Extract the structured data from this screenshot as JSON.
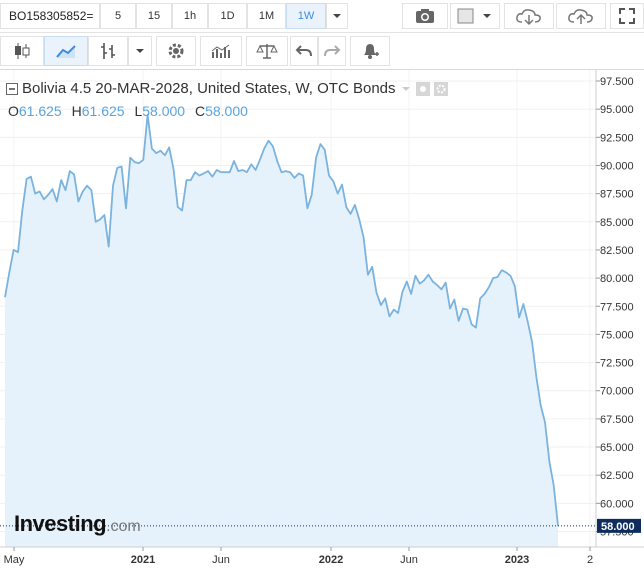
{
  "toolbar": {
    "symbol": "BO158305852=",
    "timeframes": [
      "5",
      "15",
      "1h",
      "1D",
      "1M",
      "1W"
    ],
    "active_timeframe": "1W"
  },
  "legend": {
    "title": "Bolivia 4.5 20-MAR-2028, United States, W, OTC Bonds",
    "o_label": "O",
    "o_value": "61.625",
    "h_label": "H",
    "h_value": "61.625",
    "l_label": "L",
    "l_value": "58.000",
    "c_label": "C",
    "c_value": "58.000"
  },
  "brand": {
    "name": "Investing",
    "suffix": ".com"
  },
  "colors": {
    "line": "#7ab3e0",
    "fill": "#e5f2fb",
    "accent": "#3c8dde"
  },
  "icons": [
    "candles-icon",
    "line-chart-icon",
    "bars-icon",
    "dropdown-icon",
    "gear-icon",
    "indicators-icon",
    "scales-icon",
    "undo-icon",
    "redo-icon",
    "alert-bell-icon",
    "camera-icon",
    "color-box-icon",
    "cloud-download-icon",
    "cloud-upload-icon",
    "fullscreen-icon"
  ],
  "chart_data": {
    "type": "area",
    "x_tick_labels": [
      "May",
      "2021",
      "Jun",
      "2022",
      "Jun",
      "2023",
      "2"
    ],
    "y_ticks": [
      "97.500",
      "95.000",
      "92.500",
      "90.000",
      "87.500",
      "85.000",
      "82.500",
      "80.000",
      "77.500",
      "75.000",
      "72.500",
      "70.000",
      "67.500",
      "65.000",
      "62.500",
      "60.000",
      "57.500"
    ],
    "ylim": [
      56.2,
      98.7
    ],
    "last_price": "58.000",
    "values": [
      78.3,
      80.5,
      82.5,
      82.3,
      86,
      88.8,
      89,
      87.5,
      87.7,
      87,
      87.4,
      87.9,
      86.8,
      88.7,
      87.8,
      89.5,
      89.2,
      86.8,
      87.7,
      88.2,
      87.8,
      85,
      85.2,
      85.6,
      82.8,
      88.2,
      89.8,
      89.9,
      86.2,
      90.7,
      90.3,
      90.2,
      90.5,
      94.5,
      91.5,
      91.1,
      91.3,
      90.9,
      91.6,
      89.7,
      86.3,
      86,
      88.7,
      88.7,
      89.4,
      89.1,
      89.3,
      89.5,
      89,
      89.6,
      89.4,
      89.4,
      89.4,
      90.4,
      89.5,
      89.6,
      89.4,
      90.1,
      89.6,
      90.5,
      91.5,
      92.2,
      91.7,
      90.4,
      89.4,
      89.5,
      89.4,
      88.9,
      89.3,
      89.1,
      86.2,
      87.4,
      90.7,
      91.9,
      91.4,
      89.1,
      88.6,
      87.5,
      88.3,
      86.3,
      85.7,
      86.5,
      85.2,
      83.6,
      80.3,
      81,
      78.7,
      77.6,
      78.2,
      76.6,
      77.2,
      76.9,
      78.8,
      79.7,
      78.6,
      80.2,
      79.5,
      79.8,
      80.3,
      79.7,
      79.4,
      79,
      79.6,
      77.3,
      78.1,
      76.2,
      77.3,
      77.2,
      75.9,
      75.6,
      78.2,
      78.6,
      79.2,
      80,
      80.1,
      80.7,
      80.5,
      80.2,
      79.3,
      76.5,
      77.7,
      76.1,
      74.3,
      71.2,
      68.7,
      67.2,
      63.7,
      61.6,
      58
    ]
  }
}
